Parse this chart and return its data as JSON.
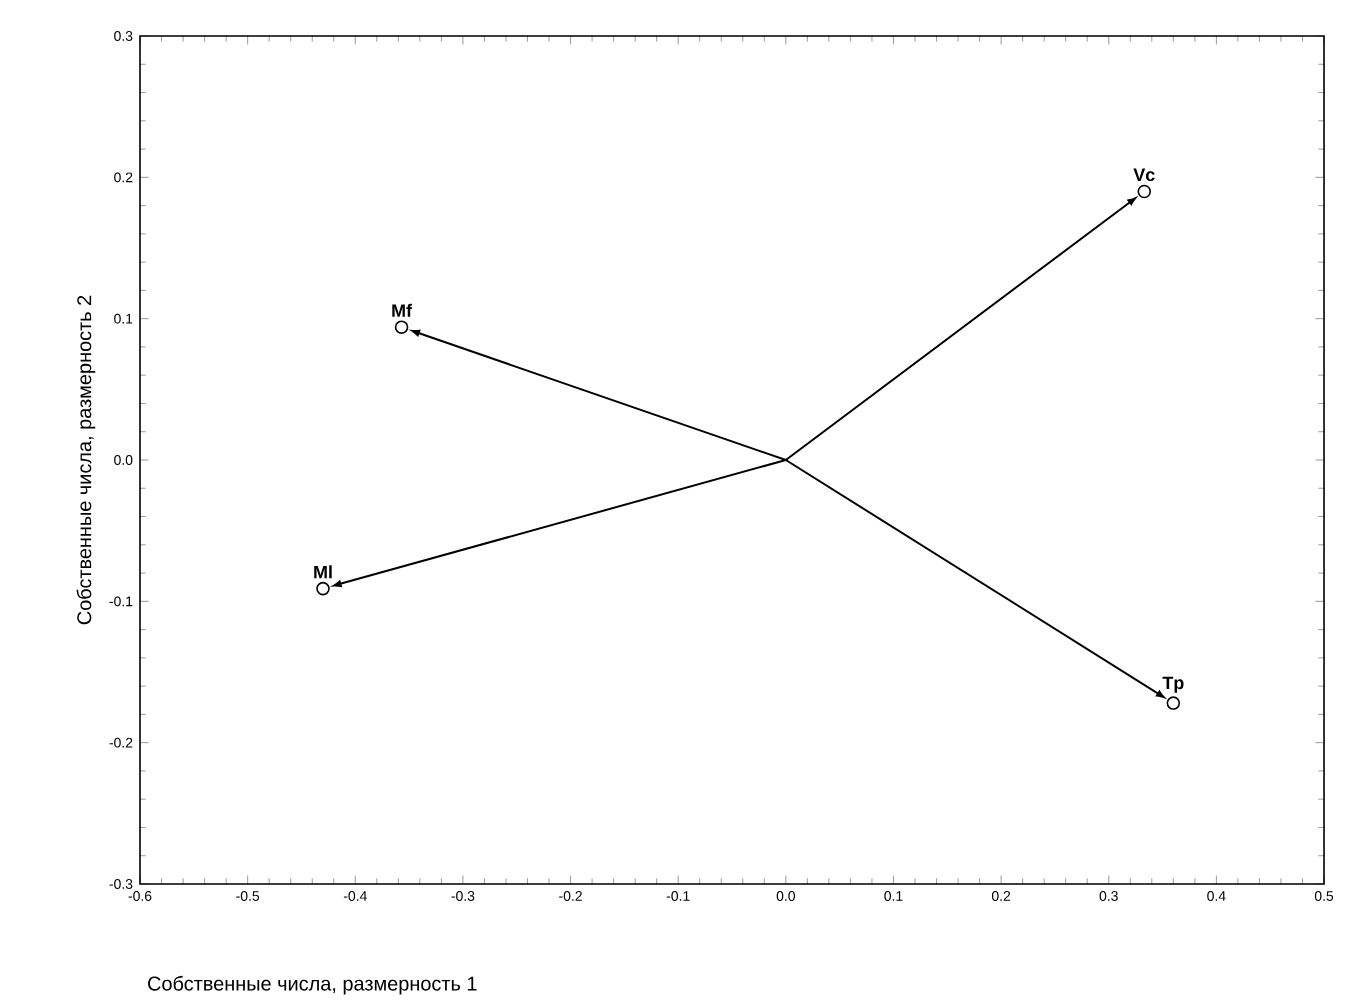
{
  "chart_data": {
    "type": "scatter",
    "xlabel": "Собственные числа, размерность 1",
    "ylabel": "Собственные числа, размерность 2",
    "xlim": [
      -0.6,
      0.5
    ],
    "ylim": [
      -0.3,
      0.3
    ],
    "xticks": [
      -0.6,
      -0.5,
      -0.4,
      -0.3,
      -0.2,
      -0.1,
      {
        "value": 0,
        "label": "0.0"
      },
      0.1,
      0.2,
      0.3,
      0.4,
      0.5
    ],
    "yticks": [
      -0.3,
      -0.2,
      -0.1,
      {
        "value": 0,
        "label": "0.0"
      },
      0.1,
      0.2,
      0.3
    ],
    "grid": false,
    "marker": "circle",
    "series": [
      {
        "type": "scatter",
        "color": "#000000",
        "x": [
          0.333,
          -0.357,
          -0.43,
          0.36
        ],
        "values": [
          0.19,
          0.094,
          -0.091,
          -0.172
        ]
      }
    ],
    "annotations": [
      {
        "text": "Vc",
        "x": 0.333,
        "y": 0.19
      },
      {
        "text": "Mf",
        "x": -0.357,
        "y": 0.094
      },
      {
        "text": "Ml",
        "x": -0.43,
        "y": -0.091
      },
      {
        "text": "Tp",
        "x": 0.36,
        "y": -0.172
      }
    ]
  }
}
